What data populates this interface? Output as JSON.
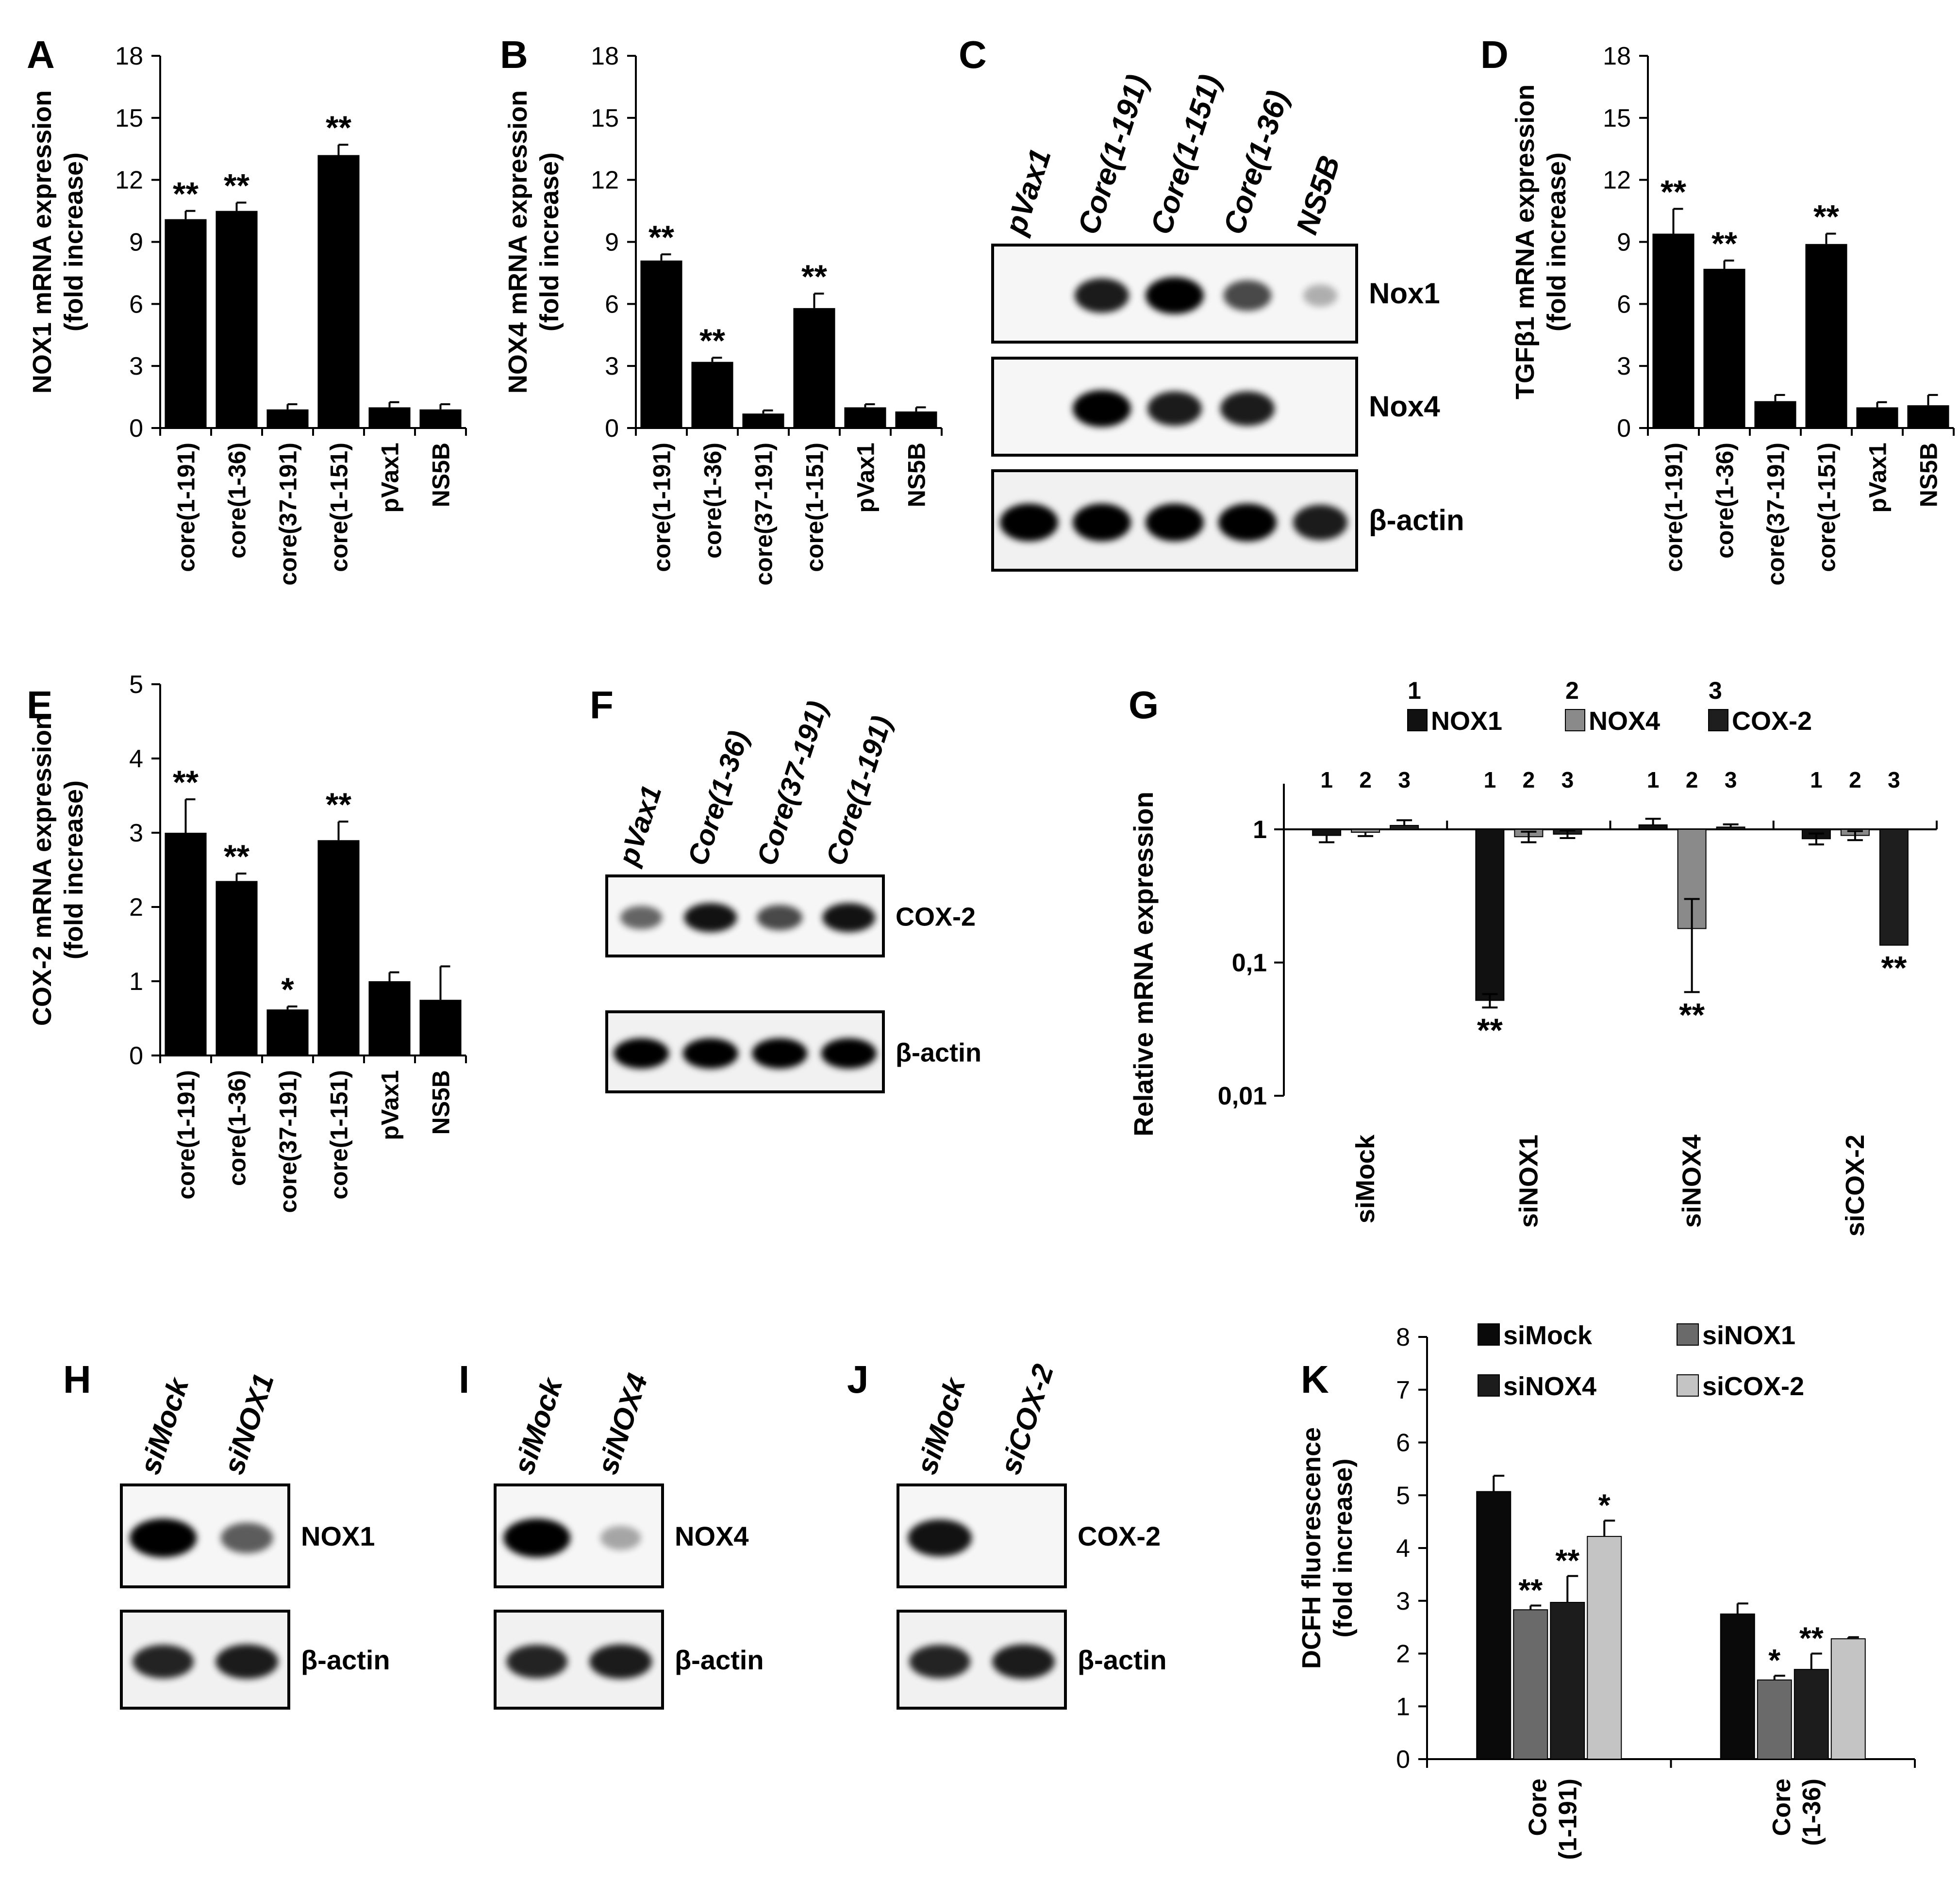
{
  "panel_letters": {
    "A": "A",
    "B": "B",
    "C": "C",
    "D": "D",
    "E": "E",
    "F": "F",
    "G": "G",
    "H": "H",
    "I": "I",
    "J": "J",
    "K": "K"
  },
  "chart_data": [
    {
      "id": "A",
      "type": "bar",
      "ylabel_line1": "NOX1 mRNA expression",
      "ylabel_line2": "(fold increase)",
      "yticks": [
        0,
        3,
        6,
        9,
        12,
        15,
        18
      ],
      "ylim": [
        0,
        18
      ],
      "categories": [
        "core(1-191)",
        "core(1-36)",
        "core(37-191)",
        "core(1-151)",
        "pVax1",
        "NS5B"
      ],
      "values": [
        10.1,
        10.5,
        0.9,
        13.2,
        1.0,
        0.9
      ],
      "errors": [
        0.4,
        0.4,
        0.25,
        0.5,
        0.25,
        0.25
      ],
      "stars": [
        "**",
        "**",
        "",
        "**",
        "",
        ""
      ]
    },
    {
      "id": "B",
      "type": "bar",
      "ylabel_line1": "NOX4 mRNA expression",
      "ylabel_line2": "(fold increase)",
      "yticks": [
        0,
        3,
        6,
        9,
        12,
        15,
        18
      ],
      "ylim": [
        0,
        18
      ],
      "categories": [
        "core(1-191)",
        "core(1-36)",
        "core(37-191)",
        "core(1-151)",
        "pVax1",
        "NS5B"
      ],
      "values": [
        8.1,
        3.2,
        0.7,
        5.8,
        1.0,
        0.8
      ],
      "errors": [
        0.3,
        0.2,
        0.15,
        0.7,
        0.15,
        0.2
      ],
      "stars": [
        "**",
        "**",
        "",
        "**",
        "",
        ""
      ]
    },
    {
      "id": "D",
      "type": "bar",
      "ylabel_line1": "TGFβ1 mRNA expression",
      "ylabel_line2": "(fold increase)",
      "yticks": [
        0,
        3,
        6,
        9,
        12,
        15,
        18
      ],
      "ylim": [
        0,
        18
      ],
      "categories": [
        "core(1-191)",
        "core(1-36)",
        "core(37-191)",
        "core(1-151)",
        "pVax1",
        "NS5B"
      ],
      "values": [
        9.4,
        7.7,
        1.3,
        8.9,
        1.0,
        1.1
      ],
      "errors": [
        1.2,
        0.4,
        0.3,
        0.5,
        0.25,
        0.5
      ],
      "stars": [
        "**",
        "**",
        "",
        "**",
        "",
        ""
      ]
    },
    {
      "id": "E",
      "type": "bar",
      "ylabel_line1": "COX-2 mRNA expression",
      "ylabel_line2": "(fold increase)",
      "yticks": [
        0,
        1,
        2,
        3,
        4,
        5
      ],
      "ylim": [
        0,
        5
      ],
      "categories": [
        "core(1-191)",
        "core(1-36)",
        "core(37-191)",
        "core(1-151)",
        "pVax1",
        "NS5B"
      ],
      "values": [
        3.0,
        2.35,
        0.62,
        2.9,
        1.0,
        0.75
      ],
      "errors": [
        0.45,
        0.1,
        0.04,
        0.25,
        0.12,
        0.45
      ],
      "stars": [
        "**",
        "**",
        "*",
        "**",
        "",
        ""
      ]
    },
    {
      "id": "G",
      "type": "bar",
      "yscale": "log",
      "ylabel": "Relative mRNA expression",
      "ytick_values": [
        1,
        0.1,
        0.01
      ],
      "ytick_labels": [
        "1",
        "0,1",
        "0,01"
      ],
      "ylim": [
        0.01,
        2.2
      ],
      "categories": [
        "siMock",
        "siNOX1",
        "siNOX4",
        "siCOX-2"
      ],
      "series": [
        {
          "name": "NOX1",
          "num": "1",
          "color": "#111111",
          "values": [
            0.9,
            0.052,
            1.08,
            0.85
          ],
          "err": [
            0.1,
            0.006,
            0.12,
            0.08
          ],
          "stars": [
            "",
            "**",
            "",
            ""
          ]
        },
        {
          "name": "NOX4",
          "num": "2",
          "color": "#8a8a8a",
          "values": [
            0.95,
            0.88,
            0.18,
            0.9
          ],
          "err": [
            0.06,
            0.08,
            0.12,
            0.07
          ],
          "stars": [
            "",
            "",
            "**",
            ""
          ]
        },
        {
          "name": "COX-2",
          "num": "3",
          "color": "#1e1e1e",
          "values": [
            1.07,
            0.92,
            1.04,
            0.135
          ],
          "err": [
            0.1,
            0.06,
            0.05,
            0.0
          ],
          "stars": [
            "",
            "",
            "",
            "**"
          ]
        }
      ]
    },
    {
      "id": "K",
      "type": "bar",
      "ylabel_line1": "DCFH  fluorescence",
      "ylabel_line2": "(fold increase)",
      "yticks": [
        0,
        1,
        2,
        3,
        4,
        5,
        6,
        7,
        8
      ],
      "ylim": [
        0,
        8
      ],
      "categories": [
        [
          "Core",
          "(1-191)"
        ],
        [
          "Core",
          "(1-36)"
        ]
      ],
      "series": [
        {
          "name": "siMock",
          "color": "#0a0a0a",
          "values": [
            5.07,
            2.75
          ],
          "err": [
            0.3,
            0.2
          ],
          "stars": [
            "",
            ""
          ]
        },
        {
          "name": "siNOX1",
          "color": "#6a6a6a",
          "values": [
            2.83,
            1.5
          ],
          "err": [
            0.08,
            0.08
          ],
          "stars": [
            "**",
            "*"
          ]
        },
        {
          "name": "siNOX4",
          "color": "#1c1c1c",
          "values": [
            2.97,
            1.7
          ],
          "err": [
            0.5,
            0.3
          ],
          "stars": [
            "**",
            "**"
          ]
        },
        {
          "name": "siCOX-2",
          "color": "#c4c4c4",
          "values": [
            4.22,
            2.28
          ],
          "err": [
            0.3,
            0.03
          ],
          "stars": [
            "*",
            ""
          ]
        }
      ]
    }
  ],
  "blots": {
    "C": {
      "lanes": [
        "pVax1",
        "Core(1-191)",
        "Core(1-151)",
        "Core(1-36)",
        "NS5B"
      ],
      "rows": [
        {
          "label": "Nox1",
          "intensity": [
            0.0,
            0.85,
            1.0,
            0.6,
            0.05
          ]
        },
        {
          "label": "Nox4",
          "intensity": [
            0.0,
            1.0,
            0.85,
            0.85,
            0.0
          ]
        },
        {
          "label": "β-actin",
          "intensity": [
            1.0,
            1.0,
            1.0,
            1.0,
            0.85
          ]
        }
      ]
    },
    "F": {
      "lanes": [
        "pVax1",
        "Core(1-36)",
        "Core(37-191)",
        "Core(1-191)"
      ],
      "rows": [
        {
          "label": "COX-2",
          "intensity": [
            0.45,
            0.9,
            0.6,
            0.9
          ]
        },
        {
          "label": "β-actin",
          "intensity": [
            1.0,
            1.0,
            1.0,
            1.0
          ]
        }
      ]
    },
    "H": {
      "lanes": [
        "siMock",
        "siNOX1"
      ],
      "rows": [
        {
          "label": "NOX1",
          "intensity": [
            1.0,
            0.5
          ]
        },
        {
          "label": "β-actin",
          "intensity": [
            0.8,
            0.85
          ]
        }
      ]
    },
    "I": {
      "lanes": [
        "siMock",
        "siNOX4"
      ],
      "rows": [
        {
          "label": "NOX4",
          "intensity": [
            1.0,
            0.1
          ]
        },
        {
          "label": "β-actin",
          "intensity": [
            0.8,
            0.85
          ]
        }
      ]
    },
    "J": {
      "lanes": [
        "siMock",
        "siCOX-2"
      ],
      "rows": [
        {
          "label": "COX-2",
          "intensity": [
            0.9,
            0.0
          ]
        },
        {
          "label": "β-actin",
          "intensity": [
            0.8,
            0.85
          ]
        }
      ]
    }
  }
}
